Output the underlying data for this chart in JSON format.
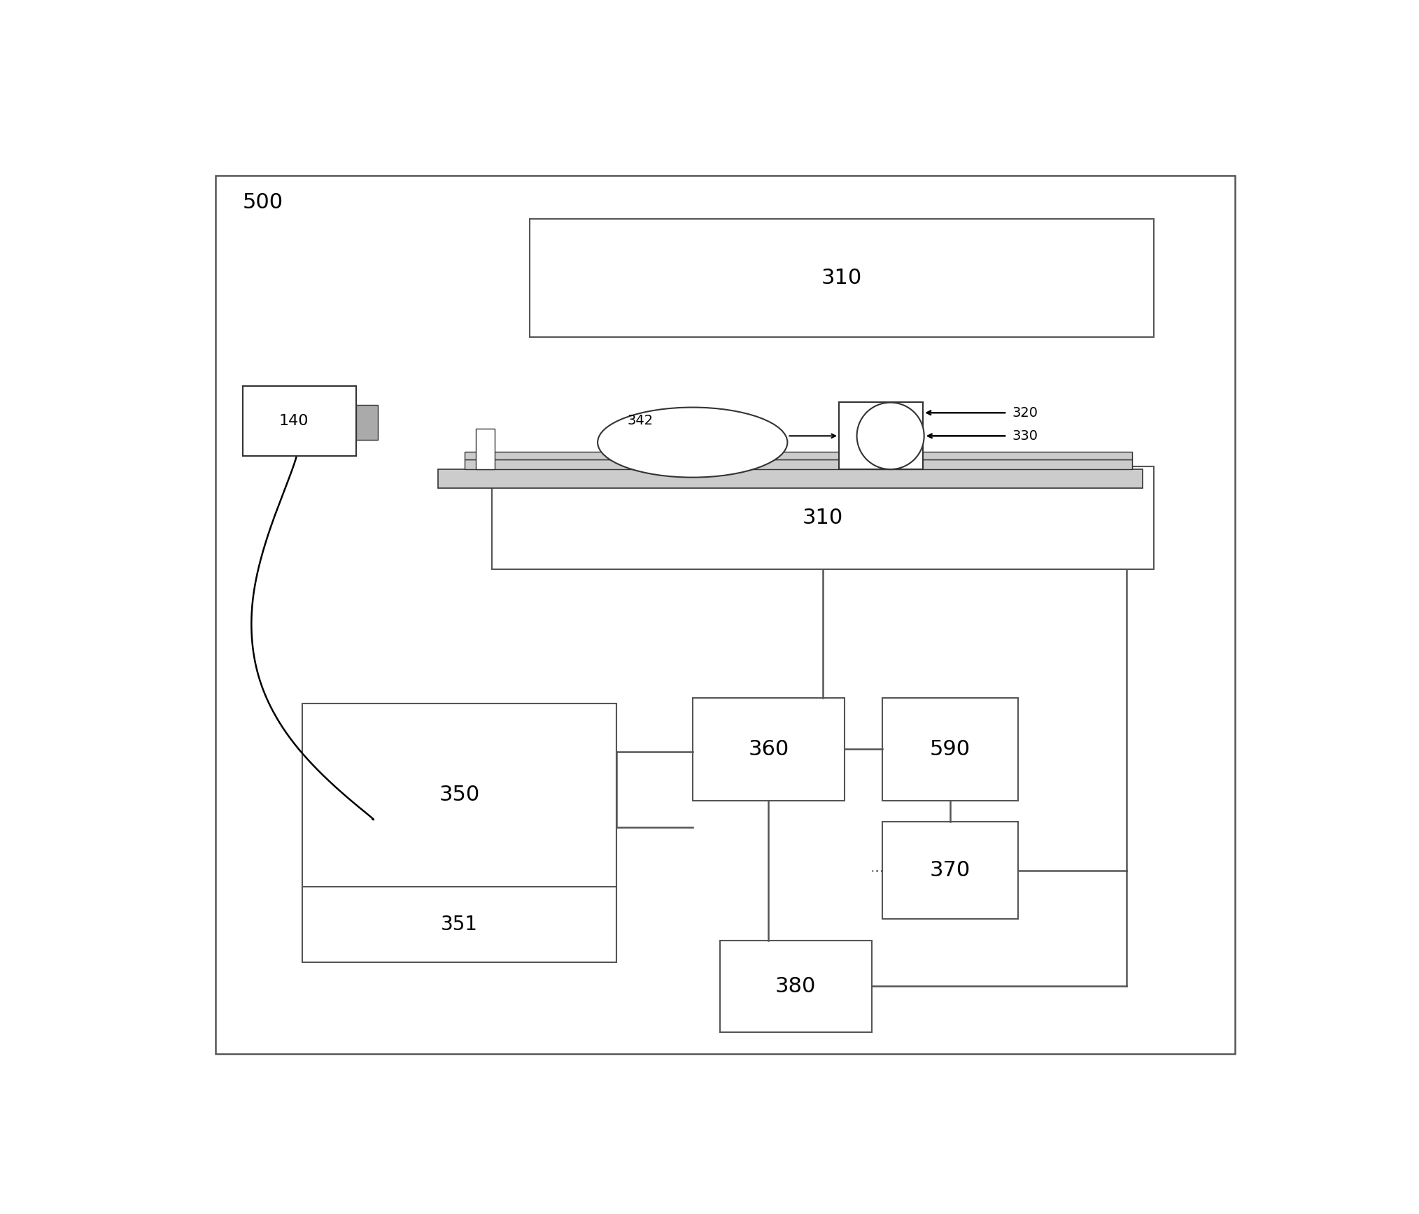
{
  "background_color": "#ffffff",
  "fig_width": 20.28,
  "fig_height": 17.36,
  "label_500": "500",
  "label_310": "310",
  "label_310b": "310",
  "label_140": "140",
  "label_320": "320",
  "label_330": "330",
  "label_342": "342",
  "label_350": "350",
  "label_351": "351",
  "label_360": "360",
  "label_370": "370",
  "label_380": "380",
  "label_590": "590"
}
